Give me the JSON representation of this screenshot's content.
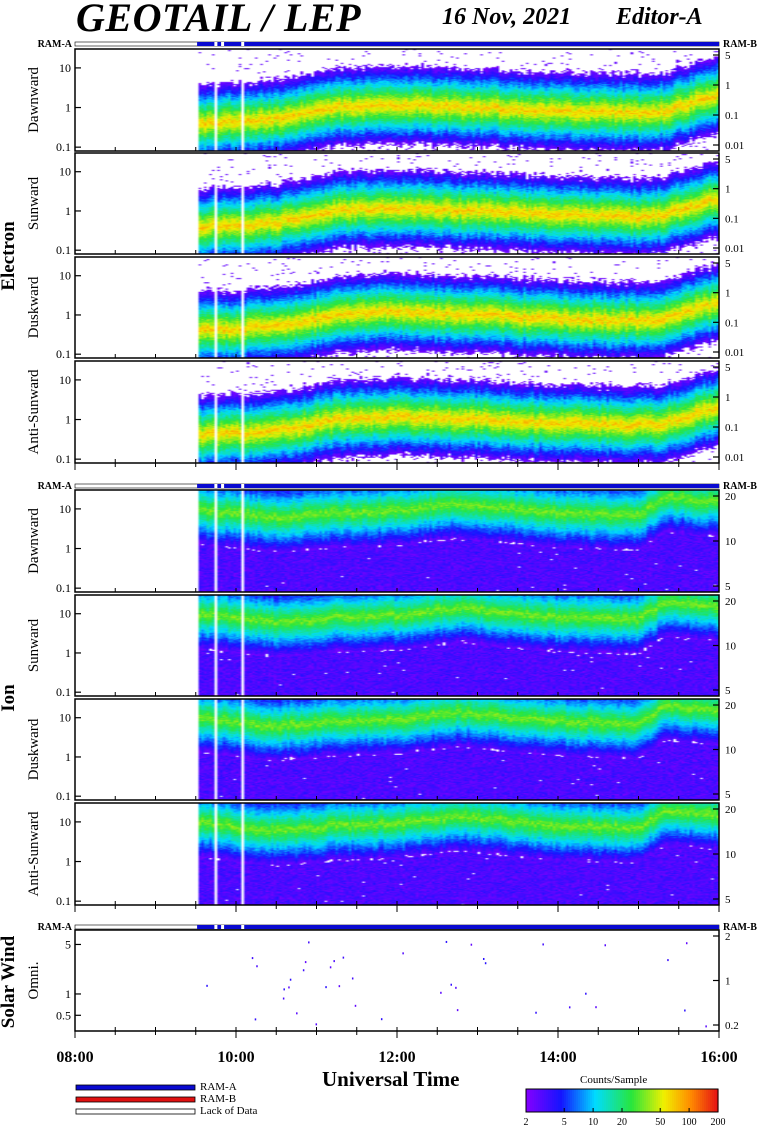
{
  "header": {
    "instrument": "GEOTAIL / LEP",
    "date": "16 Nov, 2021",
    "editor": "Editor-A"
  },
  "colors": {
    "ram_a": "#0a0ad0",
    "ram_b": "#e01010",
    "axis": "#000000"
  },
  "groups": [
    {
      "label": "Electron",
      "ram_left": "RAM-A",
      "ram_right": "RAM-B",
      "panels": [
        {
          "label": "Dawnward",
          "left_ticks": [
            "10",
            "1",
            "0.1"
          ],
          "right_ticks": [
            "5",
            "1",
            "0.1",
            "0.01"
          ]
        },
        {
          "label": "Sunward",
          "left_ticks": [
            "10",
            "1",
            "0.1"
          ],
          "right_ticks": [
            "5",
            "1",
            "0.1",
            "0.01"
          ]
        },
        {
          "label": "Duskward",
          "left_ticks": [
            "10",
            "1",
            "0.1"
          ],
          "right_ticks": [
            "5",
            "1",
            "0.1",
            "0.01"
          ]
        },
        {
          "label": "Anti-Sunward",
          "left_ticks": [
            "10",
            "1",
            "0.1"
          ],
          "right_ticks": [
            "5",
            "1",
            "0.1",
            "0.01"
          ]
        }
      ]
    },
    {
      "label": "Ion",
      "ram_left": "RAM-A",
      "ram_right": "RAM-B",
      "panels": [
        {
          "label": "Dawnward",
          "left_ticks": [
            "10",
            "1",
            "0.1"
          ],
          "right_ticks": [
            "20",
            "10",
            "5"
          ]
        },
        {
          "label": "Sunward",
          "left_ticks": [
            "10",
            "1",
            "0.1"
          ],
          "right_ticks": [
            "20",
            "10",
            "5"
          ]
        },
        {
          "label": "Duskward",
          "left_ticks": [
            "10",
            "1",
            "0.1"
          ],
          "right_ticks": [
            "20",
            "10",
            "5"
          ]
        },
        {
          "label": "Anti-Sunward",
          "left_ticks": [
            "10",
            "1",
            "0.1"
          ],
          "right_ticks": [
            "20",
            "10",
            "5"
          ]
        }
      ]
    },
    {
      "label": "Solar Wind",
      "ram_left": "RAM-A",
      "ram_right": "RAM-B",
      "panels": [
        {
          "label": "Omni.",
          "left_ticks": [
            "5",
            "1",
            "0.5"
          ],
          "right_ticks": [
            "2",
            "1",
            "0.2"
          ]
        }
      ]
    }
  ],
  "x_axis": {
    "label": "Universal Time",
    "ticks": [
      "08:00",
      "10:00",
      "12:00",
      "14:00",
      "16:00"
    ]
  },
  "legend": {
    "items": [
      {
        "label": "RAM-A",
        "color": "#0a0ad0"
      },
      {
        "label": "RAM-B",
        "color": "#e01010"
      },
      {
        "label": "Lack of Data",
        "color": "#ffffff"
      }
    ]
  },
  "colorbar": {
    "title": "Counts/Sample",
    "ticks": [
      "2",
      "5",
      "10",
      "20",
      "50",
      "100",
      "200"
    ]
  },
  "chart_data": {
    "type": "heatmap",
    "title": "GEOTAIL / LEP",
    "xlabel": "Universal Time",
    "xlim": [
      "08:00",
      "16:00"
    ],
    "yscale": "log",
    "left_ylim_plasma": [
      0.08,
      30
    ],
    "data_start": "09:31",
    "data_gaps": [
      "09:45",
      "09:50",
      "10:05"
    ],
    "electron_band": {
      "times": [
        "09:31",
        "10:30",
        "11:15",
        "12:00",
        "13:00",
        "14:00",
        "15:00",
        "15:20",
        "15:45",
        "16:00"
      ],
      "peak_energy": [
        0.4,
        0.5,
        1.0,
        1.2,
        1.0,
        0.8,
        0.7,
        0.8,
        1.5,
        2.0
      ]
    },
    "ion_band": {
      "times": [
        "09:31",
        "10:30",
        "11:15",
        "12:00",
        "12:45",
        "13:30",
        "14:00",
        "15:00",
        "15:20",
        "16:00"
      ],
      "peak_energy": [
        10,
        6,
        8,
        9,
        14,
        10,
        8,
        7,
        20,
        15
      ]
    },
    "colorbar_range": [
      2,
      200
    ]
  }
}
